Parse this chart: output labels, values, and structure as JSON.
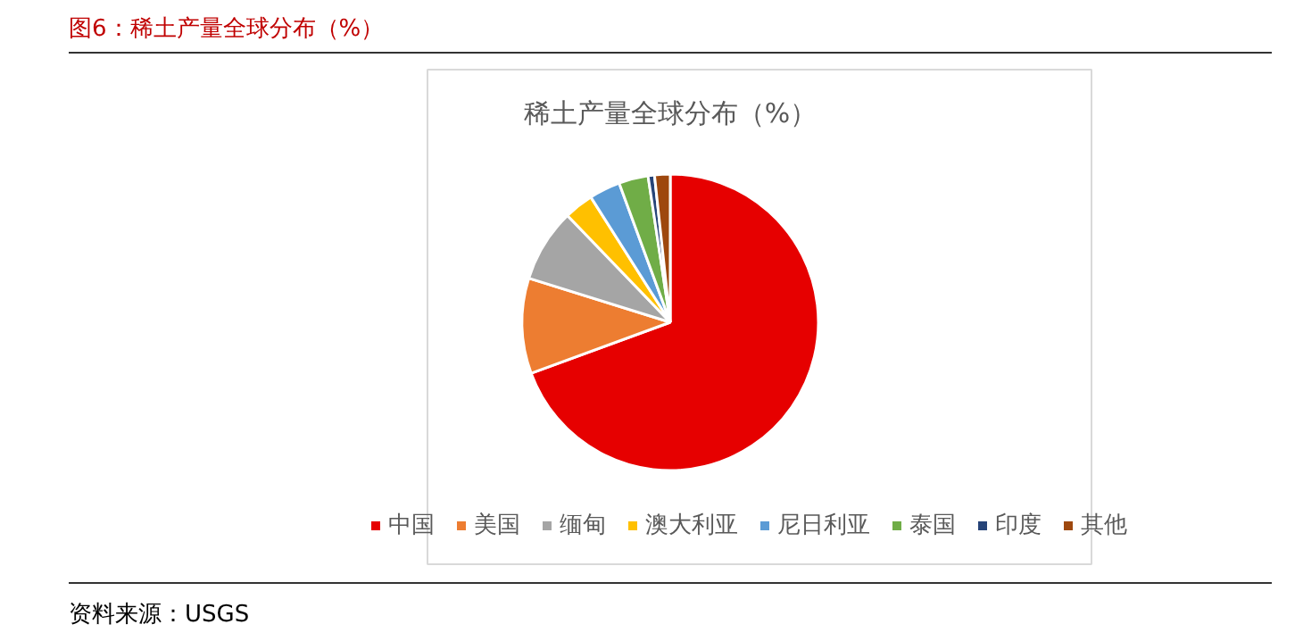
{
  "chart_data": {
    "type": "pie",
    "title": "图6：稀土产量全球分布（%）",
    "subtitle": "稀土产量全球分布（%）",
    "categories": [
      "中国",
      "美国",
      "缅甸",
      "澳大利亚",
      "尼日利亚",
      "泰国",
      "印度",
      "其他"
    ],
    "values": [
      69.4,
      10.4,
      8.0,
      3.2,
      3.4,
      3.2,
      0.7,
      1.7
    ],
    "colors": [
      "#e60000",
      "#ed7d31",
      "#a5a5a5",
      "#ffc000",
      "#5b9bd5",
      "#70ad47",
      "#264478",
      "#9e480e"
    ],
    "legend": "bottom",
    "annotations": [
      "资料来源：USGS"
    ]
  }
}
